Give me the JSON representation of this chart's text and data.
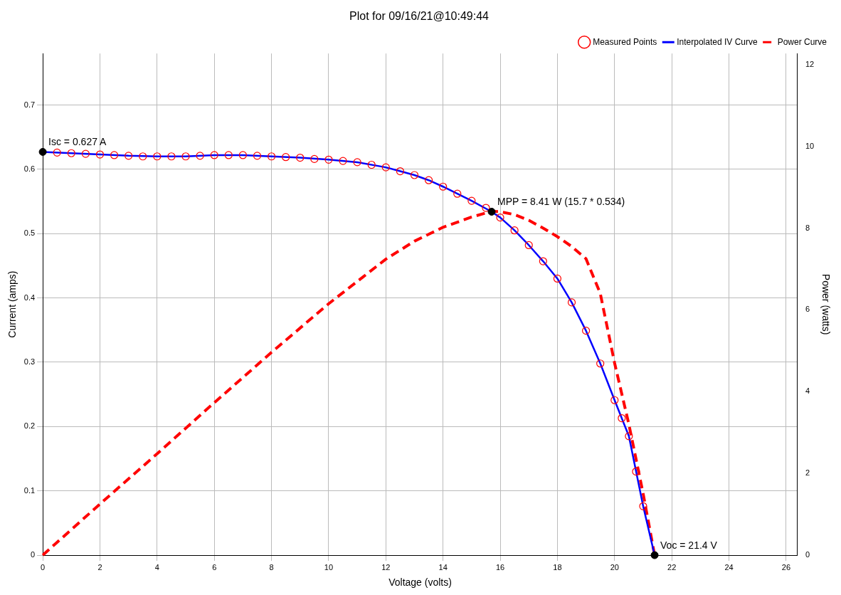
{
  "chart_data": {
    "type": "scatter",
    "title": "Plot for 09/16/21@10:49:44",
    "xlabel": "Voltage (volts)",
    "ylabel": "Current (amps)",
    "y2label": "Power (watts)",
    "xlim": [
      0,
      26.4
    ],
    "xticks": [
      0,
      2,
      4,
      6,
      8,
      10,
      12,
      14,
      16,
      18,
      20,
      22,
      24,
      26
    ],
    "ylim": [
      0,
      0.78
    ],
    "yticks": [
      0.0,
      0.1,
      0.2,
      0.3,
      0.4,
      0.5,
      0.6,
      0.7
    ],
    "y2lim": [
      0,
      12.27
    ],
    "y2ticks": [
      0,
      2,
      4,
      6,
      8,
      10,
      12
    ],
    "grid": true,
    "legend": "top right",
    "series": [
      {
        "name": "Measured Points",
        "type": "scatter",
        "marker": "circle",
        "color": "#ff0000",
        "x": [
          0.5,
          1,
          1.5,
          2,
          2.5,
          3,
          3.5,
          4,
          4.5,
          5,
          5.5,
          6,
          6.5,
          7,
          7.5,
          8,
          8.5,
          9,
          9.5,
          10,
          10.5,
          11,
          11.5,
          12,
          12.5,
          13,
          13.5,
          14,
          14.5,
          15,
          15.5,
          16,
          16.5,
          17,
          17.5,
          18,
          18.5,
          19,
          19.5,
          20,
          20.25,
          20.5,
          20.75,
          21
        ],
        "values": [
          0.626,
          0.625,
          0.624,
          0.623,
          0.622,
          0.621,
          0.62,
          0.62,
          0.62,
          0.62,
          0.621,
          0.622,
          0.622,
          0.622,
          0.621,
          0.62,
          0.619,
          0.618,
          0.616,
          0.615,
          0.613,
          0.611,
          0.607,
          0.603,
          0.597,
          0.591,
          0.583,
          0.573,
          0.562,
          0.551,
          0.54,
          0.525,
          0.505,
          0.482,
          0.457,
          0.43,
          0.393,
          0.349,
          0.298,
          0.241,
          0.213,
          0.185,
          0.13,
          0.076
        ]
      },
      {
        "name": "Interpolated IV Curve",
        "type": "line",
        "marker": "none",
        "line_style": "solid",
        "color": "#0000ff",
        "x": [
          0,
          1,
          2,
          3,
          4,
          5,
          6,
          7,
          8,
          9,
          10,
          11,
          12,
          12.5,
          13,
          13.5,
          14,
          14.5,
          15,
          15.7,
          16,
          16.5,
          17,
          17.5,
          18,
          18.5,
          19,
          19.5,
          20,
          20.5,
          21,
          21.4
        ],
        "values": [
          0.627,
          0.625,
          0.623,
          0.621,
          0.62,
          0.62,
          0.622,
          0.622,
          0.62,
          0.618,
          0.615,
          0.611,
          0.603,
          0.597,
          0.591,
          0.583,
          0.573,
          0.562,
          0.551,
          0.534,
          0.525,
          0.505,
          0.482,
          0.457,
          0.43,
          0.393,
          0.349,
          0.298,
          0.241,
          0.185,
          0.076,
          0
        ]
      },
      {
        "name": "Power Curve",
        "type": "line",
        "axis": "y2",
        "marker": "none",
        "line_style": "dashed",
        "color": "#ff0000",
        "x": [
          0,
          2,
          4,
          6,
          8,
          10,
          12,
          13,
          14,
          15,
          15.7,
          16,
          16.5,
          17,
          17.5,
          18,
          18.5,
          19,
          19.5,
          20,
          20.5,
          21,
          21.4
        ],
        "values": [
          0,
          1.25,
          2.48,
          3.73,
          4.96,
          6.15,
          7.24,
          7.68,
          8.02,
          8.27,
          8.41,
          8.4,
          8.33,
          8.19,
          8.0,
          7.79,
          7.55,
          7.25,
          6.4,
          4.7,
          3.2,
          1.5,
          0
        ]
      },
      {
        "type": "scatter",
        "marker": "circle",
        "color": "#000000",
        "x": [
          0,
          15.7,
          21.4
        ],
        "values": [
          0.627,
          0.534,
          0
        ]
      }
    ],
    "annotations": [
      {
        "text": "Isc = 0.627 A",
        "x": 0,
        "y": 0.627
      },
      {
        "text": "MPP = 8.41 W (15.7 * 0.534)",
        "x": 15.7,
        "y": 0.534
      },
      {
        "text": "Voc = 21.4 V",
        "x": 21.4,
        "y": 0
      }
    ]
  }
}
